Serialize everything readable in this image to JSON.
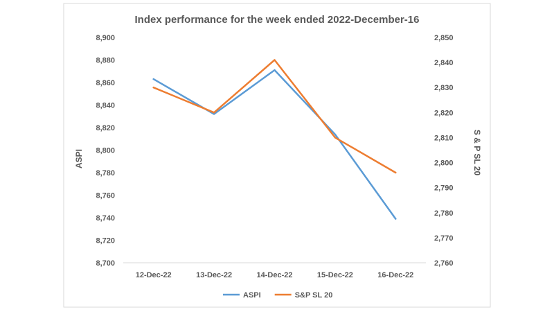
{
  "chart_data": {
    "type": "line",
    "title": "Index performance for the week ended 2022-December-16",
    "categories": [
      "12-Dec-22",
      "13-Dec-22",
      "14-Dec-22",
      "15-Dec-22",
      "16-Dec-22"
    ],
    "series": [
      {
        "name": "ASPI",
        "axis": "left",
        "color": "#5B9BD5",
        "values": [
          8863,
          8832,
          8871,
          8814,
          8739
        ]
      },
      {
        "name": "S&P SL 20",
        "axis": "right",
        "color": "#ED7D31",
        "values": [
          2830,
          2820,
          2841,
          2810,
          2796
        ]
      }
    ],
    "y_left": {
      "label": "ASPI",
      "min": 8700,
      "max": 8900,
      "ticks": [
        "8,700",
        "8,720",
        "8,740",
        "8,760",
        "8,780",
        "8,800",
        "8,820",
        "8,840",
        "8,860",
        "8,880",
        "8,900"
      ]
    },
    "y_right": {
      "label": "S & P SL 20",
      "min": 2760,
      "max": 2850,
      "ticks": [
        "2,760",
        "2,770",
        "2,780",
        "2,790",
        "2,800",
        "2,810",
        "2,820",
        "2,830",
        "2,840",
        "2,850"
      ]
    },
    "grid": false,
    "legend": "bottom"
  }
}
